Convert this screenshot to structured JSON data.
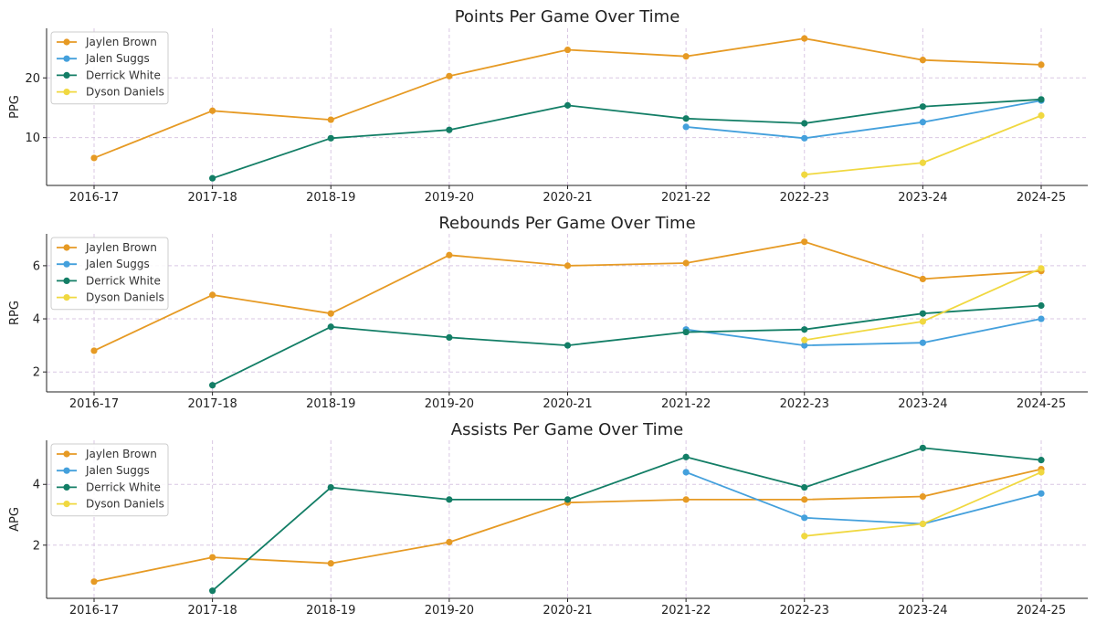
{
  "chart_data": [
    {
      "type": "line",
      "title": "Points Per Game Over Time",
      "xlabel": "",
      "ylabel": "PPG",
      "categories": [
        "2016-17",
        "2017-18",
        "2018-19",
        "2019-20",
        "2020-21",
        "2021-22",
        "2022-23",
        "2023-24",
        "2024-25"
      ],
      "ylim": [
        2.0,
        28.3
      ],
      "yticks": [
        10,
        20
      ],
      "grid": true,
      "legend": "top-left",
      "series": [
        {
          "name": "Jaylen Brown",
          "color": "#e69a24",
          "values": [
            6.6,
            14.5,
            13.0,
            20.3,
            24.7,
            23.6,
            26.6,
            23.0,
            22.2
          ]
        },
        {
          "name": "Jalen Suggs",
          "color": "#44a0dc",
          "values": [
            null,
            null,
            null,
            null,
            null,
            11.8,
            9.9,
            12.6,
            16.2
          ]
        },
        {
          "name": "Derrick White",
          "color": "#137e66",
          "values": [
            null,
            3.2,
            9.9,
            11.3,
            15.4,
            13.2,
            12.4,
            15.2,
            16.4
          ]
        },
        {
          "name": "Dyson Daniels",
          "color": "#f0d840",
          "values": [
            null,
            null,
            null,
            null,
            null,
            null,
            3.8,
            5.8,
            13.7
          ]
        }
      ]
    },
    {
      "type": "line",
      "title": "Rebounds Per Game Over Time",
      "xlabel": "",
      "ylabel": "RPG",
      "categories": [
        "2016-17",
        "2017-18",
        "2018-19",
        "2019-20",
        "2020-21",
        "2021-22",
        "2022-23",
        "2023-24",
        "2024-25"
      ],
      "ylim": [
        1.25,
        7.2
      ],
      "yticks": [
        2,
        4,
        6
      ],
      "grid": true,
      "legend": "top-left",
      "series": [
        {
          "name": "Jaylen Brown",
          "color": "#e69a24",
          "values": [
            2.8,
            4.9,
            4.2,
            6.4,
            6.0,
            6.1,
            6.9,
            5.5,
            5.8
          ]
        },
        {
          "name": "Jalen Suggs",
          "color": "#44a0dc",
          "values": [
            null,
            null,
            null,
            null,
            null,
            3.6,
            3.0,
            3.1,
            4.0
          ]
        },
        {
          "name": "Derrick White",
          "color": "#137e66",
          "values": [
            null,
            1.5,
            3.7,
            3.3,
            3.0,
            3.5,
            3.6,
            4.2,
            4.5
          ]
        },
        {
          "name": "Dyson Daniels",
          "color": "#f0d840",
          "values": [
            null,
            null,
            null,
            null,
            null,
            null,
            3.2,
            3.9,
            5.9
          ]
        }
      ]
    },
    {
      "type": "line",
      "title": "Assists Per Game Over Time",
      "xlabel": "",
      "ylabel": "APG",
      "categories": [
        "2016-17",
        "2017-18",
        "2018-19",
        "2019-20",
        "2020-21",
        "2021-22",
        "2022-23",
        "2023-24",
        "2024-25"
      ],
      "ylim": [
        0.25,
        5.45
      ],
      "yticks": [
        2,
        4
      ],
      "grid": true,
      "legend": "top-left",
      "series": [
        {
          "name": "Jaylen Brown",
          "color": "#e69a24",
          "values": [
            0.8,
            1.6,
            1.4,
            2.1,
            3.4,
            3.5,
            3.5,
            3.6,
            4.5
          ]
        },
        {
          "name": "Jalen Suggs",
          "color": "#44a0dc",
          "values": [
            null,
            null,
            null,
            null,
            null,
            4.4,
            2.9,
            2.7,
            3.7
          ]
        },
        {
          "name": "Derrick White",
          "color": "#137e66",
          "values": [
            null,
            0.5,
            3.9,
            3.5,
            3.5,
            4.9,
            3.9,
            5.2,
            4.8
          ]
        },
        {
          "name": "Dyson Daniels",
          "color": "#f0d840",
          "values": [
            null,
            null,
            null,
            null,
            null,
            null,
            2.3,
            2.7,
            4.4
          ]
        }
      ]
    }
  ]
}
